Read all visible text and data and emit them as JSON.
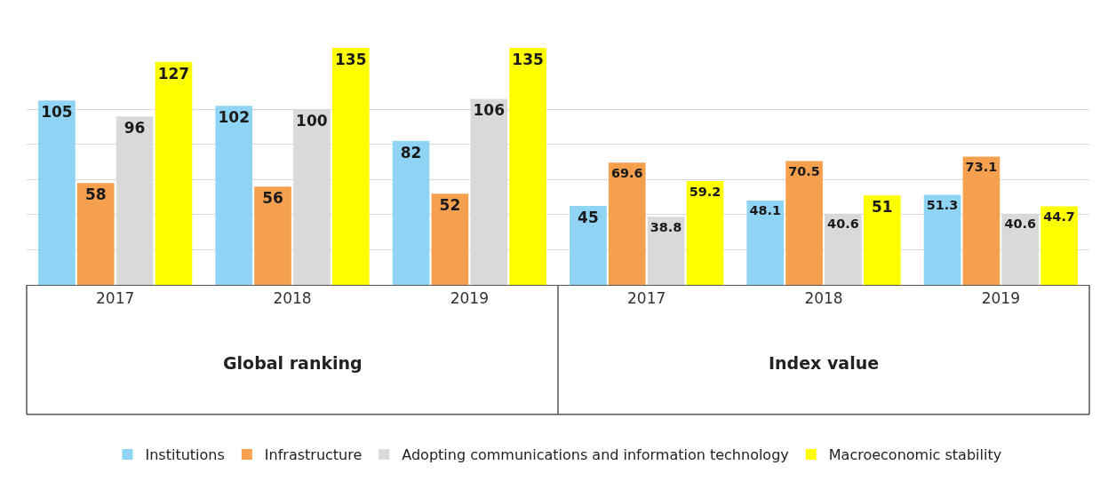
{
  "chart_data": {
    "type": "bar",
    "categories": [
      "2017",
      "2018",
      "2019",
      "2017",
      "2018",
      "2019"
    ],
    "series": [
      {
        "name": "Institutions",
        "color": "#8fd3f5",
        "values": [
          105,
          102,
          82,
          45,
          48.1,
          51.3
        ]
      },
      {
        "name": "Infrastructure",
        "color": "#f5a04f",
        "values": [
          58,
          56,
          52,
          69.6,
          70.5,
          73.1
        ]
      },
      {
        "name": "Adopting communications and information technology",
        "color": "#d9d9d9",
        "values": [
          96,
          100,
          106,
          38.8,
          40.6,
          40.6
        ]
      },
      {
        "name": "Macroeconomic stability",
        "color": "#ffff00",
        "values": [
          127,
          135,
          135,
          59.2,
          51,
          44.7
        ]
      }
    ],
    "annotations": [
      "Global ranking",
      "Index value"
    ],
    "data_labels": true,
    "yticks": [
      {
        "value": 20,
        "label": null
      },
      {
        "value": 40,
        "label": null
      },
      {
        "value": 60,
        "label": null
      },
      {
        "value": 80,
        "label": null
      },
      {
        "value": 100,
        "label": null
      }
    ],
    "grid": "y",
    "tick_labels": "x",
    "legend": "bottom"
  }
}
